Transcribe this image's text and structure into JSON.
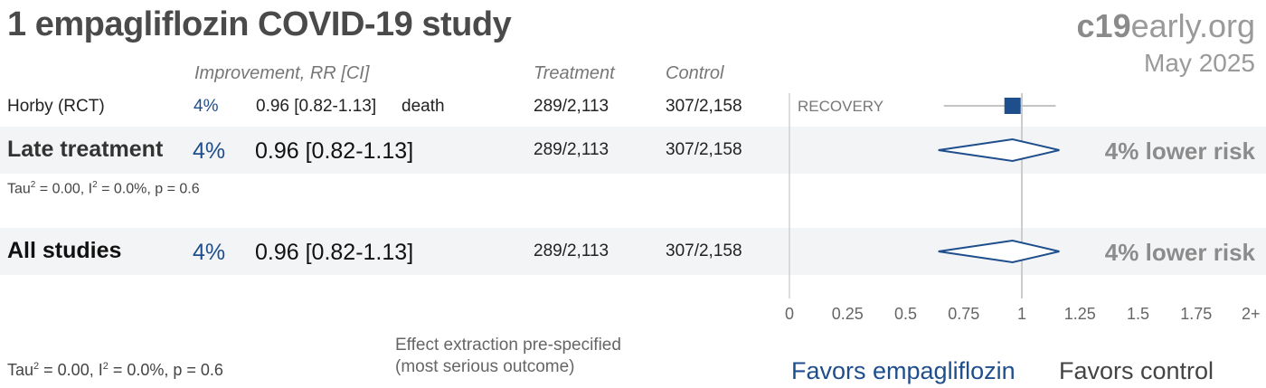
{
  "title": "1 empagliflozin COVID-19 study",
  "brand": {
    "bold": "c19",
    "rest": "early.org"
  },
  "date": "May 2025",
  "headers": {
    "improvement": "Improvement, RR [CI]",
    "treatment": "Treatment",
    "control": "Control"
  },
  "study": {
    "name": "Horby (RCT)",
    "improvement": "4%",
    "rr": "0.96 [0.82-1.13]",
    "outcome": "death",
    "treatment": "289/2,113",
    "control": "307/2,158",
    "trial": "RECOVERY"
  },
  "late": {
    "label": "Late treatment",
    "improvement": "4%",
    "rr": "0.96 [0.82-1.13]",
    "treatment": "289/2,113",
    "control": "307/2,158",
    "risk": "4% lower risk",
    "tau_prefix": "Tau",
    "tau_rest": " = 0.00, I",
    "i2_rest": " = 0.0%, p = 0.6",
    "sup": "2"
  },
  "all": {
    "label": "All studies",
    "improvement": "4%",
    "rr": "0.96 [0.82-1.13]",
    "treatment": "289/2,113",
    "control": "307/2,158",
    "risk": "4% lower risk"
  },
  "footer": {
    "tau_prefix": "Tau",
    "tau_rest": " = 0.00, I",
    "i2_rest": " = 0.0%, p = 0.6",
    "sup": "2",
    "note_line1": "Effect extraction pre-specified",
    "note_line2": "(most serious outcome)",
    "favors_left": "Favors empagliflozin",
    "favors_right": "Favors control"
  },
  "colors": {
    "accent": "#1f4e8c",
    "band": "#f3f4f6",
    "grid": "#cccccc"
  },
  "chart_data": {
    "type": "forest",
    "x_ticks": [
      "0",
      "0.25",
      "0.5",
      "0.75",
      "1",
      "1.25",
      "1.5",
      "1.75",
      "2+"
    ],
    "xlim": [
      0,
      2
    ],
    "reference": 1,
    "rows": [
      {
        "name": "Horby (RCT)",
        "kind": "study",
        "rr": 0.96,
        "lo": 0.82,
        "hi": 1.13
      },
      {
        "name": "Late treatment",
        "kind": "summary",
        "rr": 0.96,
        "lo": 0.82,
        "hi": 1.13
      },
      {
        "name": "All studies",
        "kind": "summary",
        "rr": 0.96,
        "lo": 0.82,
        "hi": 1.13
      }
    ]
  }
}
